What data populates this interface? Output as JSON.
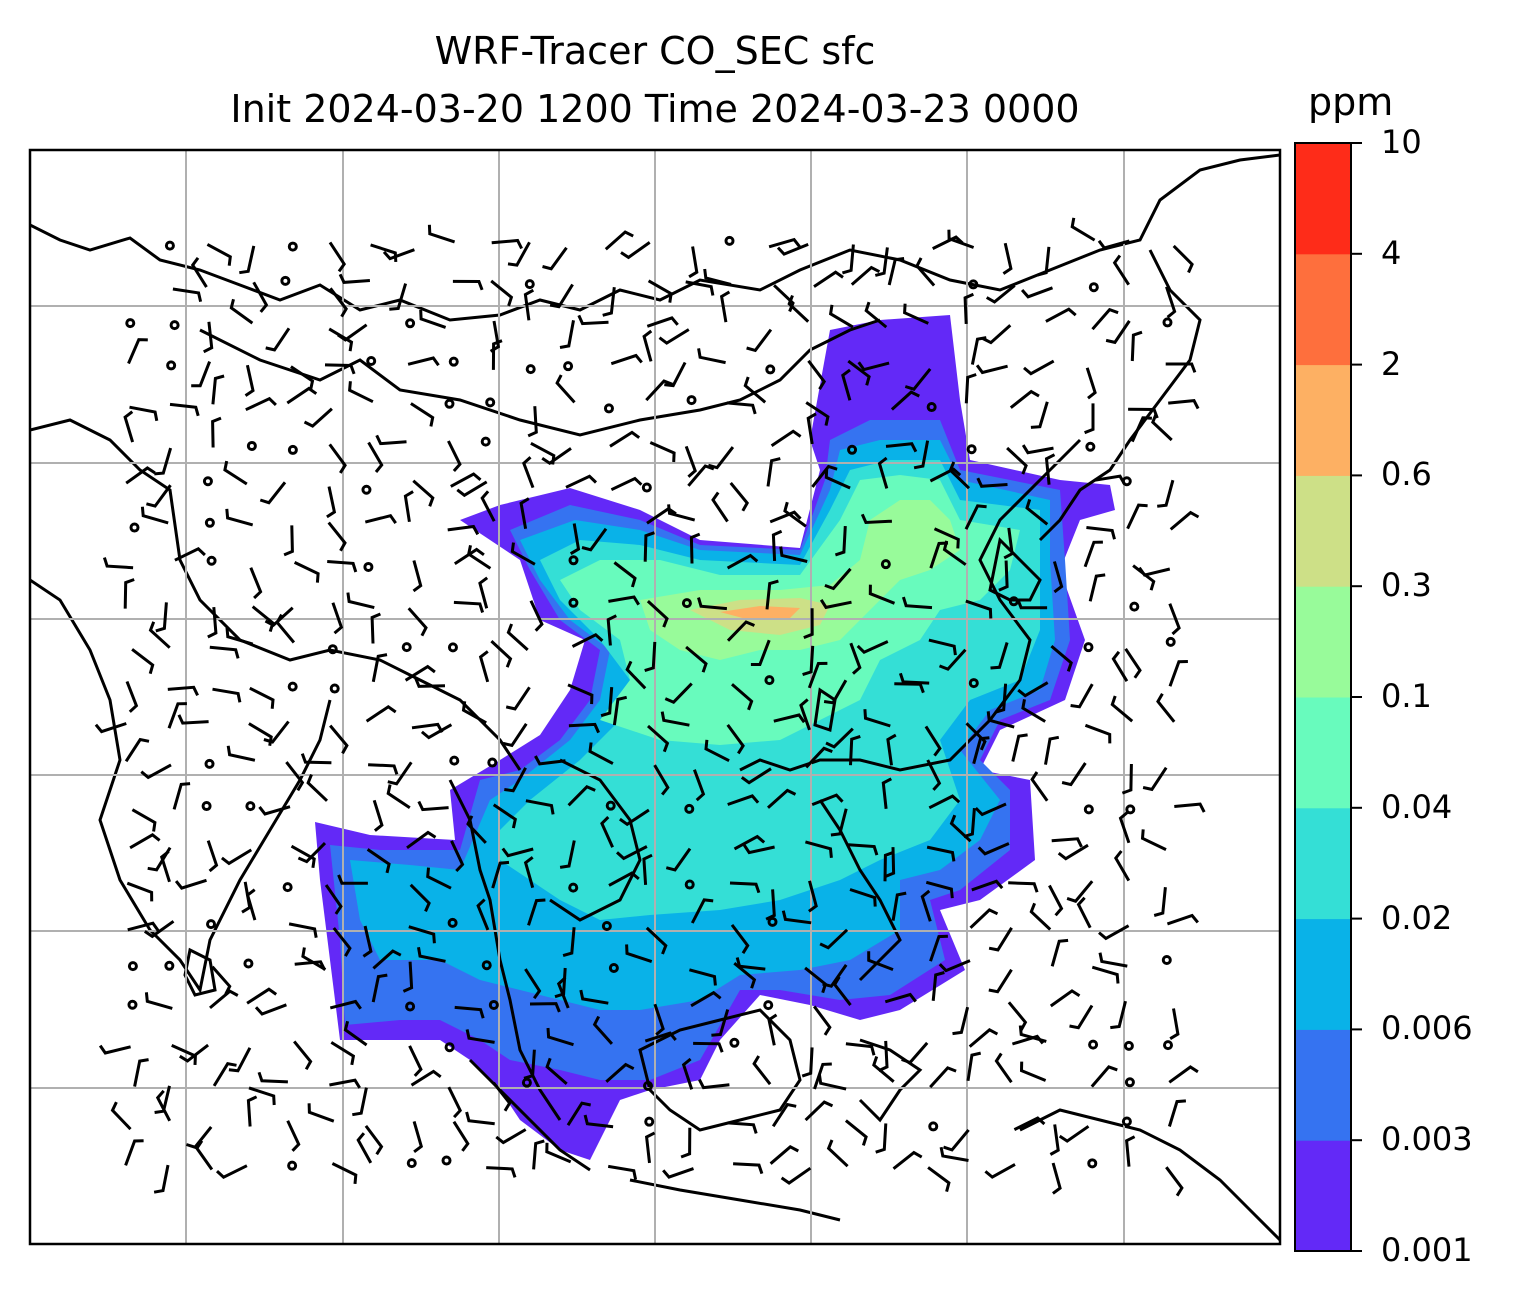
{
  "title": {
    "line1": "WRF-Tracer CO_SEC sfc",
    "line2": "Init 2024-03-20 1200 Time 2024-03-23 0000"
  },
  "colorbar": {
    "unit": "ppm",
    "levels": [
      "0.001",
      "0.003",
      "0.006",
      "0.02",
      "0.04",
      "0.1",
      "0.3",
      "0.6",
      "2",
      "4",
      "10"
    ],
    "colors": [
      "#6329f7",
      "#3573f1",
      "#09b2e8",
      "#34dfd6",
      "#68fbbd",
      "#98fb9a",
      "#cde087",
      "#fdb063",
      "#fe6f3d",
      "#fe2c19"
    ]
  },
  "map": {
    "projection": "lat-lon grid",
    "gridlines": true,
    "field": "CO_SEC surface tracer concentration",
    "wind_barbs": true
  }
}
